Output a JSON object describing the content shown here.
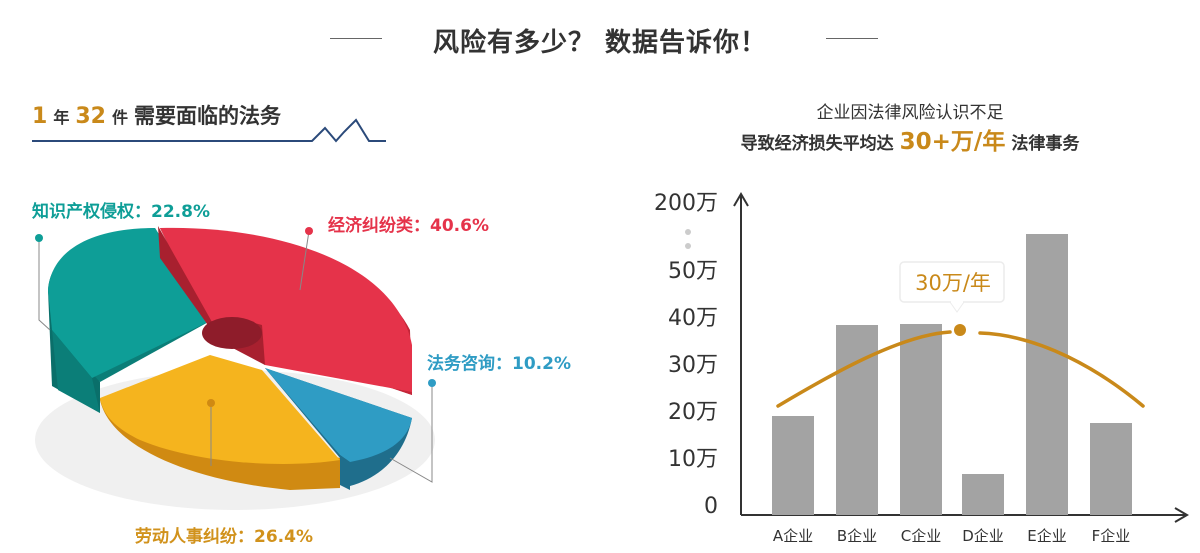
{
  "header": {
    "title": "风险有多少？ 数据告诉你！"
  },
  "left": {
    "count1": "1",
    "unit1": "年",
    "count2": "32",
    "unit2": "件",
    "heading": "需要面临的法务"
  },
  "right": {
    "subtitle1": "企业因法律风险认识不足",
    "subtitle2_pre": "导致经济损失平均达",
    "subtitle2_highlight": "30+万/年",
    "subtitle2_post": "法律事务",
    "callout": "30万/年"
  },
  "colors": {
    "teal": "#0e9e97",
    "red": "#e5334a",
    "blue": "#2f9cc4",
    "yellow": "#f5b41e",
    "bar": "#a3a3a3",
    "accent": "#c9891a"
  },
  "chart_data": [
    {
      "type": "pie",
      "slices": [
        {
          "label": "经济纠纷类：40.6%",
          "name": "经济纠纷类",
          "value": 40.6,
          "color": "#e5334a"
        },
        {
          "label": "法务咨询：10.2%",
          "name": "法务咨询",
          "value": 10.2,
          "color": "#2f9cc4"
        },
        {
          "label": "劳动人事纠纷：26.4%",
          "name": "劳动人事纠纷",
          "value": 26.4,
          "color": "#f5b41e"
        },
        {
          "label": "知识产权侵权：22.8%",
          "name": "知识产权侵权",
          "value": 22.8,
          "color": "#0e9e97"
        }
      ]
    },
    {
      "type": "bar",
      "categories": [
        "A企业",
        "B企业",
        "C企业",
        "D企业",
        "E企业",
        "F企业"
      ],
      "values": [
        21,
        40,
        40.3,
        9,
        118,
        19.5
      ],
      "ytick_labels": [
        "0",
        "10万",
        "20万",
        "30万",
        "40万",
        "50万",
        "200万"
      ],
      "ytick_values": [
        0,
        10,
        20,
        30,
        40,
        50,
        200
      ],
      "axis_note": "y axis has a break between 50万 and 200万",
      "trend_line": true
    }
  ]
}
